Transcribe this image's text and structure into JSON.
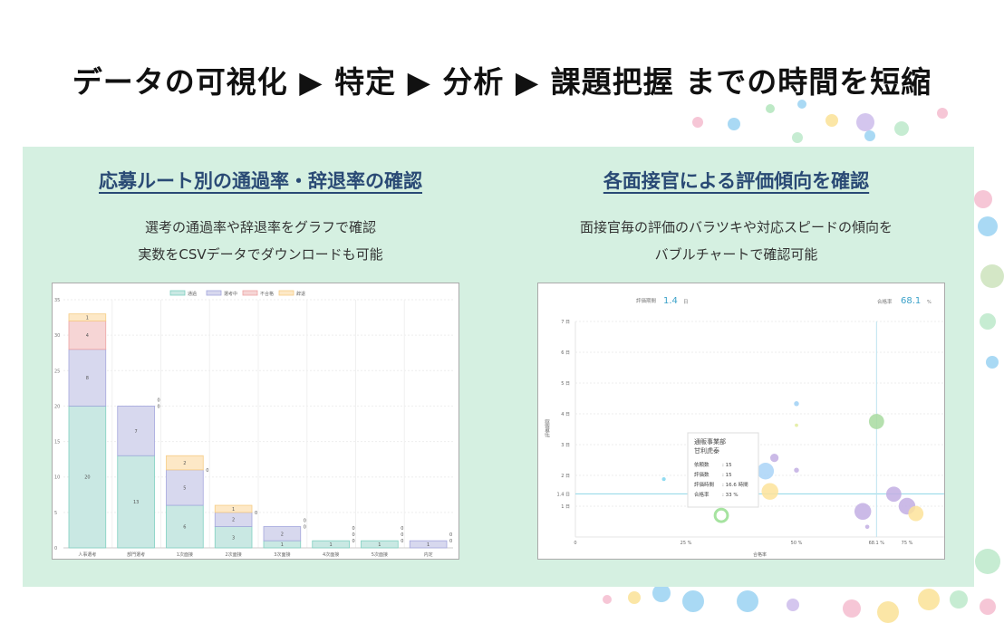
{
  "title": "データの可視化 ▶ 特定 ▶ 分析 ▶ 課題把握 までの時間を短縮",
  "left": {
    "heading": "応募ルート別の通過率・辞退率の確認",
    "lines": [
      "選考の通過率や辞退率をグラフで確認",
      "実数をCSVデータでダウンロードも可能"
    ]
  },
  "right": {
    "heading": "各面接官による評価傾向を確認",
    "lines": [
      "面接官毎の評価のバラツキや対応スピードの傾向を",
      "バブルチャートで確認可能"
    ]
  },
  "chart_data": [
    {
      "type": "bar",
      "stacked": true,
      "categories": [
        "人事選考",
        "部門選考",
        "1次面接",
        "2次面接",
        "3次面接",
        "4次面接",
        "5次面接",
        "内定"
      ],
      "series": [
        {
          "name": "通過",
          "color": "#c9e8e3",
          "stroke": "#7fcfc0",
          "values": [
            20,
            13,
            6,
            3,
            1,
            1,
            1,
            0
          ]
        },
        {
          "name": "選考中",
          "color": "#d7d8ee",
          "stroke": "#a3a6dc",
          "values": [
            8,
            7,
            5,
            2,
            2,
            0,
            0,
            1
          ]
        },
        {
          "name": "不合格",
          "color": "#f6d5d5",
          "stroke": "#eea3a3",
          "values": [
            4,
            0,
            0,
            0,
            0,
            0,
            0,
            0
          ]
        },
        {
          "name": "辞退",
          "color": "#fde8c6",
          "stroke": "#f6cc84",
          "values": [
            1,
            0,
            2,
            1,
            0,
            0,
            0,
            0
          ]
        }
      ],
      "ylim": [
        0,
        35
      ],
      "yticks": [
        0,
        5,
        10,
        15,
        20,
        25,
        30,
        35
      ],
      "grid": true,
      "legend": "top"
    },
    {
      "type": "scatter",
      "subtype": "bubble",
      "xlabel": "合格率",
      "ylabel": "評価期間",
      "summary": {
        "period_label": "評価期間",
        "period_value": "1.4",
        "period_unit": "日",
        "rate_label": "合格率",
        "rate_value": "68.1",
        "rate_unit": "%"
      },
      "xlim": [
        0,
        87
      ],
      "ylim": [
        0,
        7
      ],
      "xticks": [
        {
          "v": 0,
          "l": "0"
        },
        {
          "v": 25,
          "l": "25 %"
        },
        {
          "v": 50,
          "l": "50 %"
        },
        {
          "v": 68.1,
          "l": "68.1 %"
        },
        {
          "v": 75,
          "l": "75 %"
        }
      ],
      "yticks": [
        {
          "v": 1,
          "l": "1 日"
        },
        {
          "v": 1.4,
          "l": "1.4 日"
        },
        {
          "v": 2,
          "l": "2 日"
        },
        {
          "v": 3,
          "l": "3 日"
        },
        {
          "v": 4,
          "l": "4 日"
        },
        {
          "v": 5,
          "l": "5 日"
        },
        {
          "v": 6,
          "l": "6 日"
        },
        {
          "v": 7,
          "l": "7 日"
        }
      ],
      "reference": {
        "x": 68.1,
        "y": 1.4
      },
      "points": [
        {
          "x": 20,
          "y": 1.88,
          "size": 1,
          "color": "#7fd6ee"
        },
        {
          "x": 50,
          "y": 4.33,
          "size": 1.3,
          "color": "#9fd0f5"
        },
        {
          "x": 50,
          "y": 3.63,
          "size": 0.9,
          "color": "#e2ec9c"
        },
        {
          "x": 68.1,
          "y": 3.75,
          "size": 4,
          "color": "#a8dba0"
        },
        {
          "x": 45,
          "y": 2.57,
          "size": 2.2,
          "color": "#c2aee3"
        },
        {
          "x": 50,
          "y": 2.17,
          "size": 1.3,
          "color": "#c2aee3"
        },
        {
          "x": 43,
          "y": 2.14,
          "size": 4.4,
          "color": "#a9d4f7"
        },
        {
          "x": 44,
          "y": 1.48,
          "size": 4.4,
          "color": "#fde39a"
        },
        {
          "x": 33,
          "y": 0.7,
          "size": 4,
          "color": "#a6e3a0",
          "ring": true
        },
        {
          "x": 72,
          "y": 1.39,
          "size": 4,
          "color": "#c2aee3"
        },
        {
          "x": 65,
          "y": 0.83,
          "size": 4.4,
          "color": "#c2aee3"
        },
        {
          "x": 75,
          "y": 1.0,
          "size": 4.4,
          "color": "#c2aee3"
        },
        {
          "x": 77,
          "y": 0.76,
          "size": 4,
          "color": "#fde39a"
        },
        {
          "x": 66,
          "y": 0.33,
          "size": 1.1,
          "color": "#c2aee3"
        }
      ],
      "tooltip": {
        "title": [
          "通販事業部",
          "甘利虎泰"
        ],
        "rows": [
          [
            "依頼数",
            ": 15"
          ],
          [
            "評価数",
            ": 15"
          ],
          [
            "評価時間",
            ": 16.6 時間"
          ],
          [
            "合格率",
            ": 33 %"
          ]
        ]
      }
    }
  ]
}
